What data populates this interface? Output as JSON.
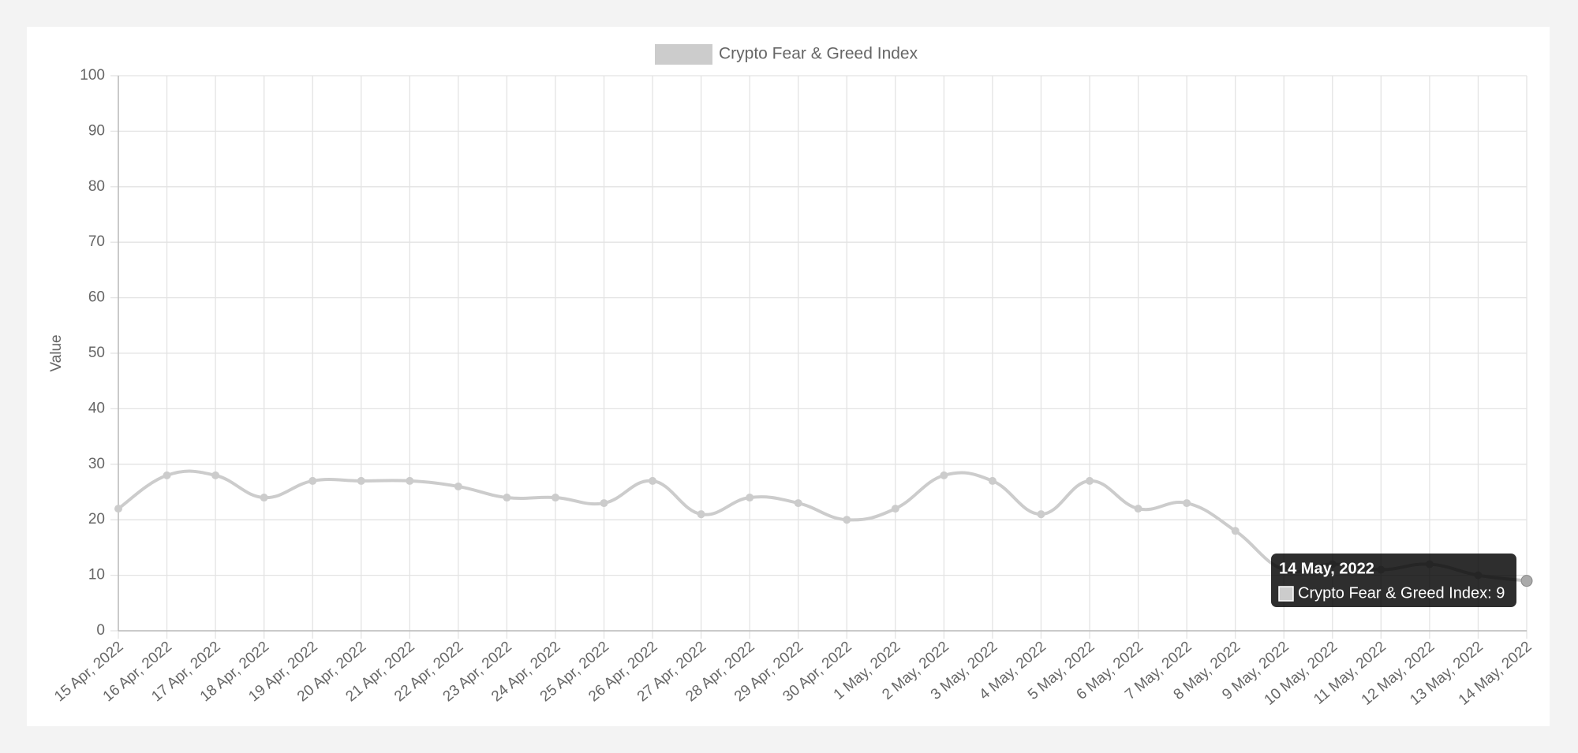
{
  "chart_data": {
    "type": "line",
    "y_label": "Value",
    "categories": [
      "15 Apr, 2022",
      "16 Apr, 2022",
      "17 Apr, 2022",
      "18 Apr, 2022",
      "19 Apr, 2022",
      "20 Apr, 2022",
      "21 Apr, 2022",
      "22 Apr, 2022",
      "23 Apr, 2022",
      "24 Apr, 2022",
      "25 Apr, 2022",
      "26 Apr, 2022",
      "27 Apr, 2022",
      "28 Apr, 2022",
      "29 Apr, 2022",
      "30 Apr, 2022",
      "1 May, 2022",
      "2 May, 2022",
      "3 May, 2022",
      "4 May, 2022",
      "5 May, 2022",
      "6 May, 2022",
      "7 May, 2022",
      "8 May, 2022",
      "9 May, 2022",
      "10 May, 2022",
      "11 May, 2022",
      "12 May, 2022",
      "13 May, 2022",
      "14 May, 2022"
    ],
    "series": [
      {
        "name": "Crypto Fear & Greed Index",
        "color": "#cccccc",
        "values": [
          22,
          28,
          28,
          24,
          27,
          27,
          27,
          26,
          24,
          24,
          23,
          27,
          21,
          24,
          23,
          20,
          22,
          28,
          27,
          21,
          27,
          22,
          23,
          18,
          11,
          12,
          11,
          12,
          10,
          9
        ]
      }
    ],
    "ylim": [
      0,
      100
    ],
    "yticks": [
      0,
      10,
      20,
      30,
      40,
      50,
      60,
      70,
      80,
      90,
      100
    ],
    "grid": true,
    "legend": "top",
    "tooltip": {
      "title": "14 May, 2022",
      "text": "Crypto Fear & Greed Index: 9"
    }
  }
}
